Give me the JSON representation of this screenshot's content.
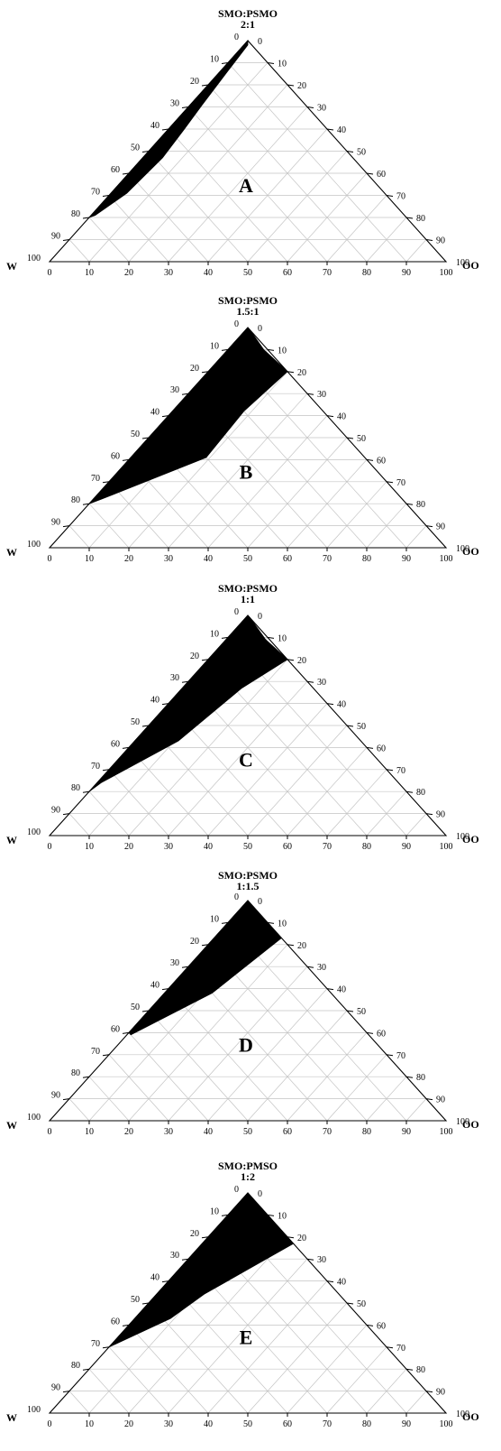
{
  "chart_data": [
    {
      "type": "ternary-area",
      "panel_label": "A",
      "title_line1": "SMO:PSMO",
      "title_line2": "2:1",
      "corners": {
        "left": "W",
        "right": "OO",
        "top": ""
      },
      "ticks": [
        0,
        10,
        20,
        30,
        40,
        50,
        60,
        70,
        80,
        90,
        100
      ],
      "region": [
        [
          100,
          0,
          0
        ],
        [
          96,
          0,
          4
        ],
        [
          89,
          0,
          11
        ],
        [
          82,
          0,
          18
        ],
        [
          72,
          0,
          28
        ],
        [
          62,
          0,
          38
        ],
        [
          50,
          0,
          50
        ],
        [
          35,
          0,
          65
        ],
        [
          20,
          0,
          80
        ],
        [
          21,
          1,
          78
        ],
        [
          31,
          4,
          65
        ],
        [
          47,
          5,
          48
        ],
        [
          60,
          4,
          36
        ],
        [
          71,
          3,
          26
        ],
        [
          84,
          2,
          14
        ],
        [
          98,
          1,
          1
        ]
      ]
    },
    {
      "type": "ternary-area",
      "panel_label": "B",
      "title_line1": "SMO:PSMO",
      "title_line2": "1.5:1",
      "corners": {
        "left": "W",
        "right": "OO",
        "top": ""
      },
      "ticks": [
        0,
        10,
        20,
        30,
        40,
        50,
        60,
        70,
        80,
        90,
        100
      ],
      "region": [
        [
          100,
          0,
          0
        ],
        [
          85,
          0,
          15
        ],
        [
          65,
          0,
          35
        ],
        [
          45,
          0,
          55
        ],
        [
          20,
          0,
          80
        ],
        [
          22,
          2,
          76
        ],
        [
          41,
          19,
          40
        ],
        [
          62,
          18,
          20
        ],
        [
          80,
          20,
          0
        ],
        [
          90,
          9,
          1
        ],
        [
          99,
          1,
          0
        ]
      ]
    },
    {
      "type": "ternary-area",
      "panel_label": "C",
      "title_line1": "SMO:PSMO",
      "title_line2": "1:1",
      "corners": {
        "left": "W",
        "right": "OO",
        "top": ""
      },
      "ticks": [
        0,
        10,
        20,
        30,
        40,
        50,
        60,
        70,
        80,
        90,
        100
      ],
      "region": [
        [
          100,
          0,
          0
        ],
        [
          85,
          0,
          15
        ],
        [
          65,
          0,
          35
        ],
        [
          45,
          0,
          55
        ],
        [
          20,
          0,
          80
        ],
        [
          24,
          1,
          75
        ],
        [
          43,
          11,
          46
        ],
        [
          67,
          15,
          18
        ],
        [
          80,
          20,
          0
        ],
        [
          89,
          10,
          1
        ],
        [
          99,
          1,
          0
        ]
      ]
    },
    {
      "type": "ternary-area",
      "panel_label": "D",
      "title_line1": "SMO:PSMO",
      "title_line2": "1:1.5",
      "corners": {
        "left": "W",
        "right": "OO",
        "top": ""
      },
      "ticks": [
        0,
        10,
        20,
        30,
        40,
        50,
        60,
        70,
        80,
        90,
        100
      ],
      "region": [
        [
          100,
          0,
          0
        ],
        [
          85,
          0,
          15
        ],
        [
          70,
          0,
          30
        ],
        [
          55,
          0,
          45
        ],
        [
          40,
          0,
          60
        ],
        [
          39,
          1,
          60
        ],
        [
          58,
          12,
          30
        ],
        [
          83,
          17,
          0
        ],
        [
          90,
          10,
          0
        ],
        [
          99,
          1,
          0
        ]
      ]
    },
    {
      "type": "ternary-area",
      "panel_label": "E",
      "title_line1": "SMO:PMSO",
      "title_line2": "1:2",
      "corners": {
        "left": "W",
        "right": "OO",
        "top": ""
      },
      "ticks": [
        0,
        10,
        20,
        30,
        40,
        50,
        60,
        70,
        80,
        90,
        100
      ],
      "region": [
        [
          100,
          0,
          0
        ],
        [
          85,
          0,
          15
        ],
        [
          70,
          0,
          30
        ],
        [
          50,
          0,
          50
        ],
        [
          30,
          0,
          70
        ],
        [
          43,
          9,
          48
        ],
        [
          54,
          12,
          34
        ],
        [
          77,
          23,
          0
        ],
        [
          90,
          10,
          0
        ],
        [
          99,
          1,
          0
        ]
      ]
    }
  ]
}
